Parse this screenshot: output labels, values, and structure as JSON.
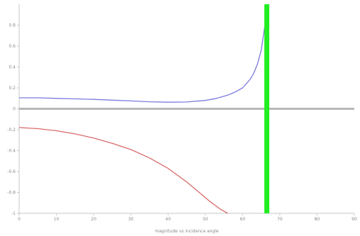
{
  "chart_data": {
    "type": "line",
    "title": "",
    "xlabel": "magnitude vs incidence angle",
    "ylabel": "",
    "xlim": [
      0,
      90
    ],
    "ylim": [
      -1,
      1
    ],
    "x_ticks": [
      "0",
      "10",
      "20",
      "30",
      "40",
      "50",
      "60",
      "70",
      "80",
      "90"
    ],
    "y_ticks": [
      "0.8",
      "0.6",
      "0.4",
      "0.2",
      "0",
      "-0.2",
      "-0.4",
      "-0.6",
      "-0.8",
      "-1"
    ],
    "grid": false,
    "legend": "none",
    "series": [
      {
        "color": "#7b7bdc",
        "x": [
          0,
          5,
          10,
          15,
          20,
          25,
          30,
          35,
          40,
          45,
          50,
          53,
          56,
          58,
          60,
          62,
          63,
          64,
          65,
          66
        ],
        "y": [
          0.105,
          0.105,
          0.1,
          0.095,
          0.09,
          0.083,
          0.075,
          0.067,
          0.063,
          0.065,
          0.08,
          0.1,
          0.13,
          0.16,
          0.2,
          0.28,
          0.34,
          0.43,
          0.56,
          0.8
        ]
      },
      {
        "color": "#d96a6a",
        "x": [
          0,
          5,
          10,
          15,
          20,
          25,
          30,
          35,
          40,
          45,
          48,
          51,
          54,
          56
        ],
        "y": [
          -0.18,
          -0.19,
          -0.21,
          -0.24,
          -0.28,
          -0.33,
          -0.39,
          -0.47,
          -0.57,
          -0.7,
          -0.79,
          -0.88,
          -0.96,
          -1.0
        ]
      }
    ],
    "reference_lines": [
      {
        "orientation": "horizontal",
        "value": 0,
        "color": "#b8b8b8"
      },
      {
        "orientation": "vertical",
        "value": 66.5,
        "color": "#22ee22"
      }
    ]
  }
}
